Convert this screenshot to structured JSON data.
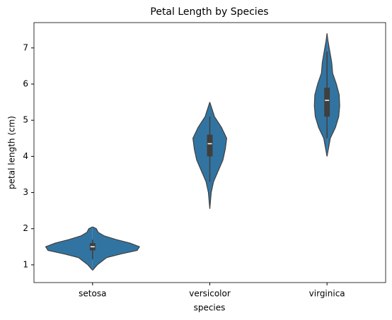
{
  "chart_data": {
    "type": "violin",
    "title": "Petal Length by Species",
    "x_label": "species",
    "y_label": "petal length (cm)",
    "categories": [
      "setosa",
      "versicolor",
      "virginica"
    ],
    "color": "#3274a1",
    "violins": [
      {
        "kde_y": [
          0.85,
          1.0,
          1.2,
          1.3,
          1.4,
          1.5,
          1.6,
          1.7,
          1.8,
          1.9,
          2.0,
          2.05
        ],
        "kde_width": [
          0,
          0.1,
          0.3,
          0.6,
          0.95,
          1.0,
          0.8,
          0.5,
          0.25,
          0.12,
          0.08,
          0
        ],
        "whisker_low": 1.15,
        "q1": 1.4,
        "median": 1.5,
        "q3": 1.6,
        "whisker_high": 1.7
      },
      {
        "kde_y": [
          2.55,
          3.0,
          3.3,
          3.6,
          3.9,
          4.2,
          4.5,
          4.8,
          5.1,
          5.3,
          5.5
        ],
        "kde_width": [
          0,
          0.03,
          0.08,
          0.18,
          0.28,
          0.33,
          0.36,
          0.25,
          0.1,
          0.05,
          0
        ],
        "whisker_low": 3.3,
        "q1": 4.0,
        "median": 4.35,
        "q3": 4.6,
        "whisker_high": 5.1
      },
      {
        "kde_y": [
          4.0,
          4.5,
          4.8,
          5.1,
          5.4,
          5.7,
          6.0,
          6.3,
          6.6,
          6.9,
          7.2,
          7.4
        ],
        "kde_width": [
          0,
          0.07,
          0.18,
          0.25,
          0.27,
          0.26,
          0.2,
          0.12,
          0.1,
          0.06,
          0.02,
          0
        ],
        "whisker_low": 4.5,
        "q1": 5.1,
        "median": 5.55,
        "q3": 5.9,
        "whisker_high": 6.9
      }
    ],
    "ylim": [
      0.51,
      7.7
    ],
    "yticks": [
      1,
      2,
      3,
      4,
      5,
      6,
      7
    ],
    "grid": false
  }
}
